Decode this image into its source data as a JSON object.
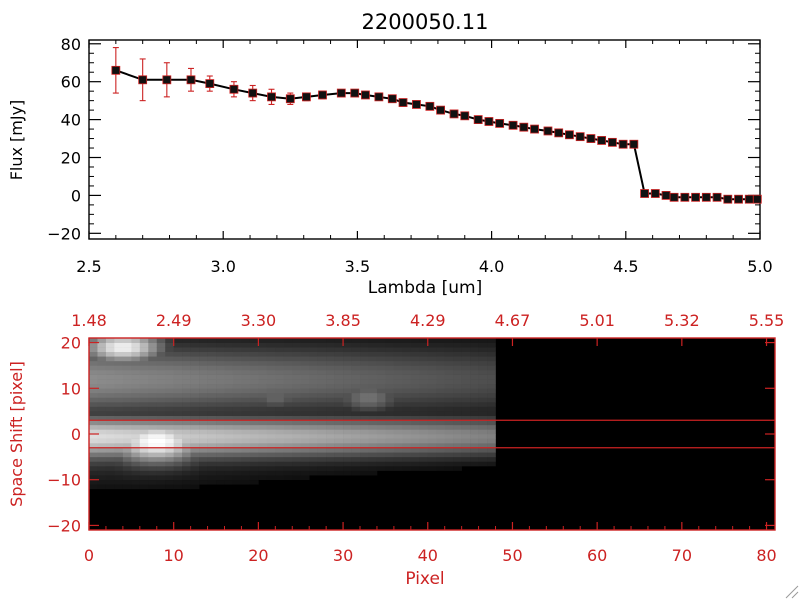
{
  "title": "2200050.11",
  "colors": {
    "axis_top": "#000000",
    "axis_bottom": "#cc2222",
    "errorbar": "#cc2222",
    "marker": "#000000",
    "marker_face": "#cc2222",
    "line": "#000000"
  },
  "chart_data": [
    {
      "type": "line",
      "title": "2200050.11",
      "xlabel": "Lambda [um]",
      "ylabel": "Flux [mJy]",
      "xlim": [
        2.5,
        5.0
      ],
      "ylim": [
        -23,
        82
      ],
      "xticks": [
        "2.5",
        "3.0",
        "3.5",
        "4.0",
        "4.5",
        "5.0"
      ],
      "yticks": [
        "−20",
        "0",
        "20",
        "40",
        "60",
        "80"
      ],
      "grid": false,
      "x": [
        2.6,
        2.7,
        2.79,
        2.88,
        2.95,
        3.04,
        3.11,
        3.18,
        3.25,
        3.31,
        3.37,
        3.44,
        3.49,
        3.53,
        3.58,
        3.63,
        3.67,
        3.72,
        3.77,
        3.81,
        3.86,
        3.9,
        3.95,
        3.99,
        4.03,
        4.08,
        4.12,
        4.16,
        4.21,
        4.25,
        4.29,
        4.33,
        4.37,
        4.41,
        4.45,
        4.49,
        4.53,
        4.57,
        4.61,
        4.65,
        4.68,
        4.72,
        4.76,
        4.8,
        4.84,
        4.88,
        4.92,
        4.96,
        4.99
      ],
      "y": [
        66,
        61,
        61,
        61,
        59,
        56,
        54,
        52,
        51,
        52,
        53,
        54,
        54,
        53,
        52,
        51,
        49,
        48,
        47,
        45,
        43,
        42,
        40,
        39,
        38,
        37,
        36,
        35,
        34,
        33,
        32,
        31,
        30,
        29,
        28,
        27,
        27,
        1,
        1,
        0,
        -1,
        -1,
        -1,
        -1,
        -1,
        -2,
        -2,
        -2,
        -2
      ],
      "err": [
        12,
        11,
        9,
        6,
        4,
        4,
        4,
        4,
        3,
        2,
        2,
        1,
        1,
        1,
        1,
        1,
        1,
        1,
        1,
        1,
        1,
        1,
        1,
        1,
        1,
        1,
        1,
        1,
        1,
        1,
        1,
        1,
        1,
        1,
        1,
        1,
        1,
        1,
        1,
        1,
        1,
        1,
        1,
        1,
        1,
        1,
        1,
        1,
        1
      ]
    },
    {
      "type": "heatmap",
      "xlabel": "Pixel",
      "ylabel": "Space Shift [pixel]",
      "xlim": [
        0,
        81
      ],
      "ylim": [
        -21,
        21
      ],
      "xticks": [
        "0",
        "10",
        "20",
        "30",
        "40",
        "50",
        "60",
        "70",
        "80"
      ],
      "yticks": [
        "−20",
        "−10",
        "0",
        "10",
        "20"
      ],
      "top_ticks": [
        "1.48",
        "2.49",
        "3.30",
        "3.85",
        "4.29",
        "4.67",
        "5.01",
        "5.32",
        "5.55"
      ],
      "extraction_aperture": [
        -3,
        3
      ],
      "data_extent_pixel": 48,
      "sources": [
        {
          "x": 8,
          "y": -1.5,
          "peak": 1.0,
          "sx": 4,
          "sy": 3.2
        },
        {
          "x": 4,
          "y": 19,
          "peak": 0.95,
          "sx": 3.5,
          "sy": 2.5
        },
        {
          "x": 33,
          "y": 8,
          "peak": 0.45,
          "sx": 3,
          "sy": 2.5
        },
        {
          "x": 22,
          "y": 8,
          "peak": 0.4,
          "sx": 2.5,
          "sy": 2
        }
      ]
    }
  ]
}
